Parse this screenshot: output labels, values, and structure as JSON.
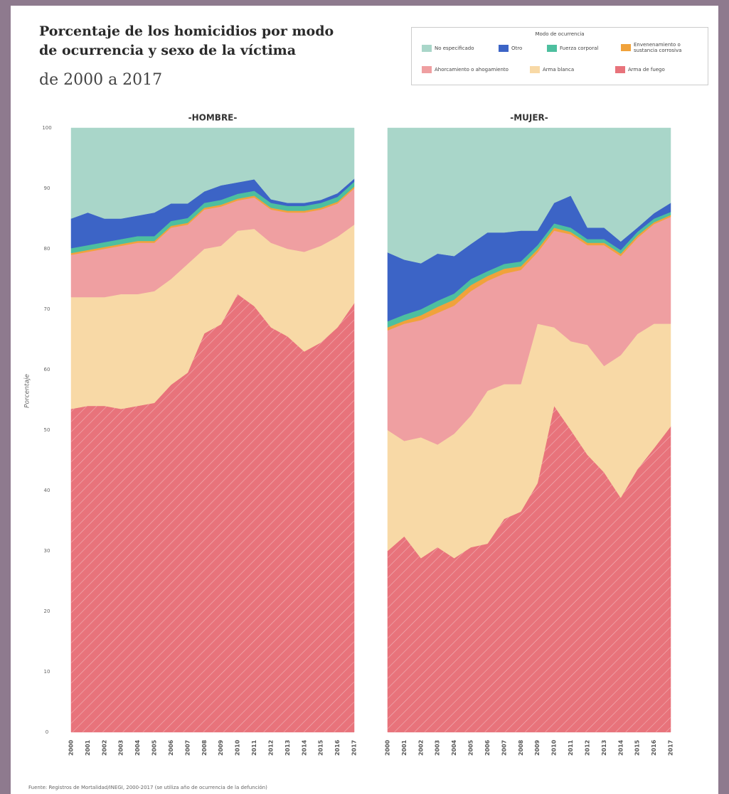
{
  "title_lines": [
    "Porcentaje de los homicidios por modo",
    "de ocurrencia y sexo de la víctima"
  ],
  "subtitle": "de 2000 a 2017",
  "legend_title": "Modo de ocurrencia",
  "source": "Fuente: Registros de Mortalidad/INEGI, 2000-2017 (se utiliza año de ocurrencia de la defunción)",
  "chart_data": [
    {
      "type": "area",
      "stacked": true,
      "title": "-HOMBRE-",
      "y_label": "Porcentaje",
      "categories": [
        "2000",
        "2001",
        "2002",
        "2003",
        "2004",
        "2005",
        "2006",
        "2007",
        "2008",
        "2009",
        "2010",
        "2011",
        "2012",
        "2013",
        "2014",
        "2015",
        "2016",
        "2017"
      ],
      "ylim": [
        0,
        100
      ],
      "yticks": [
        0,
        10,
        20,
        30,
        40,
        50,
        60,
        70,
        80,
        90,
        100
      ],
      "series": [
        {
          "name": "No especificado",
          "color": "#a9d6c9",
          "values": [
            15,
            14,
            15,
            15,
            14.5,
            14,
            12.5,
            12.5,
            10.5,
            9.5,
            9,
            8.5,
            11.8,
            12.4,
            12.4,
            11.9,
            10.8,
            8.4
          ]
        },
        {
          "name": "Otro",
          "color": "#3c64c6",
          "values": [
            4.9,
            5.4,
            3.9,
            3.4,
            3.4,
            3.9,
            2.9,
            2.4,
            1.9,
            2.4,
            1.9,
            1.9,
            0.6,
            0.5,
            0.5,
            0.5,
            0.6,
            0.5
          ]
        },
        {
          "name": "Fuerza corporal",
          "color": "#4dbf9f",
          "values": [
            0.8,
            0.8,
            0.8,
            0.8,
            0.8,
            0.8,
            0.8,
            0.8,
            0.8,
            0.8,
            0.8,
            0.8,
            0.8,
            0.8,
            0.8,
            0.8,
            0.8,
            0.8
          ]
        },
        {
          "name": "Envenenamiento o sustancia corrosiva",
          "color": "#f0a23b",
          "values": [
            0.3,
            0.3,
            0.3,
            0.3,
            0.3,
            0.3,
            0.3,
            0.3,
            0.3,
            0.3,
            0.3,
            0.3,
            0.3,
            0.3,
            0.3,
            0.3,
            0.3,
            0.3
          ]
        },
        {
          "name": "Ahorcamiento o ahogamiento",
          "color": "#ef9fa1",
          "values": [
            7,
            7.5,
            8,
            8,
            8.5,
            8,
            8.5,
            6.5,
            6.5,
            6.5,
            5,
            5.2,
            5.5,
            6,
            6.5,
            6,
            5.5,
            6
          ]
        },
        {
          "name": "Arma blanca",
          "color": "#f8d9a6",
          "values": [
            18.5,
            18,
            18,
            19,
            18.5,
            18.5,
            17.5,
            18,
            14,
            13,
            10.5,
            12.8,
            14,
            14.5,
            16.5,
            16,
            15,
            13
          ]
        },
        {
          "name": "Arma de fuego",
          "color": "#e8737b",
          "hatch": true,
          "values": [
            53.5,
            54,
            54,
            53.5,
            54,
            54.5,
            57.5,
            59.5,
            66,
            67.5,
            72.5,
            70.5,
            67,
            65.5,
            63,
            64.5,
            67,
            71
          ]
        }
      ]
    },
    {
      "type": "area",
      "stacked": true,
      "title": "-MUJER-",
      "categories": [
        "2000",
        "2001",
        "2002",
        "2003",
        "2004",
        "2005",
        "2006",
        "2007",
        "2008",
        "2009",
        "2010",
        "2011",
        "2012",
        "2013",
        "2014",
        "2015",
        "2016",
        "2017"
      ],
      "ylim": [
        0,
        100
      ],
      "series": [
        {
          "name": "No especificado",
          "color": "#a9d6c9",
          "values": [
            20.6,
            21.8,
            22.4,
            20.8,
            21.2,
            19.2,
            17.3,
            17.3,
            17,
            17,
            12.4,
            11.2,
            16.5,
            16.5,
            18.8,
            16.5,
            14.1,
            12.4
          ]
        },
        {
          "name": "Otro",
          "color": "#3c64c6",
          "values": [
            11.4,
            9.1,
            7.6,
            7.8,
            6.2,
            5.8,
            6.4,
            5.2,
            5.1,
            2.4,
            3.4,
            5.3,
            1.9,
            1.9,
            1.4,
            0.7,
            0.9,
            1.5
          ]
        },
        {
          "name": "Fuerza corporal",
          "color": "#4dbf9f",
          "values": [
            1,
            1,
            1,
            1,
            1,
            1,
            0.8,
            0.8,
            0.8,
            0.7,
            0.7,
            0.7,
            0.6,
            0.6,
            0.6,
            0.6,
            0.6,
            0.5
          ]
        },
        {
          "name": "Envenenamiento o sustancia corrosiva",
          "color": "#f0a23b",
          "values": [
            0.5,
            0.5,
            0.8,
            1,
            1,
            1,
            0.8,
            0.8,
            0.6,
            0.5,
            0.5,
            0.4,
            0.4,
            0.4,
            0.4,
            0.4,
            0.3,
            0.3
          ]
        },
        {
          "name": "Ahorcamiento o ahogamiento",
          "color": "#ef9fa1",
          "values": [
            16.5,
            19.4,
            19.4,
            21.8,
            21.2,
            20.6,
            18.2,
            18.3,
            18.9,
            11.8,
            16,
            17.7,
            16.5,
            20,
            16.4,
            15.9,
            16.5,
            17.7
          ]
        },
        {
          "name": "Arma blanca",
          "color": "#f8d9a6",
          "values": [
            20,
            15.8,
            20,
            17,
            20.6,
            21.8,
            25.3,
            22.3,
            21.1,
            26.4,
            13,
            14.7,
            18.2,
            17.6,
            23.6,
            22.4,
            20.6,
            17
          ]
        },
        {
          "name": "Arma de fuego",
          "color": "#e8737b",
          "hatch": true,
          "values": [
            30,
            32.4,
            28.8,
            30.6,
            28.8,
            30.6,
            31.2,
            35.3,
            36.5,
            41.2,
            54,
            50,
            45.9,
            43,
            38.8,
            43.5,
            47,
            50.6
          ]
        }
      ]
    }
  ]
}
